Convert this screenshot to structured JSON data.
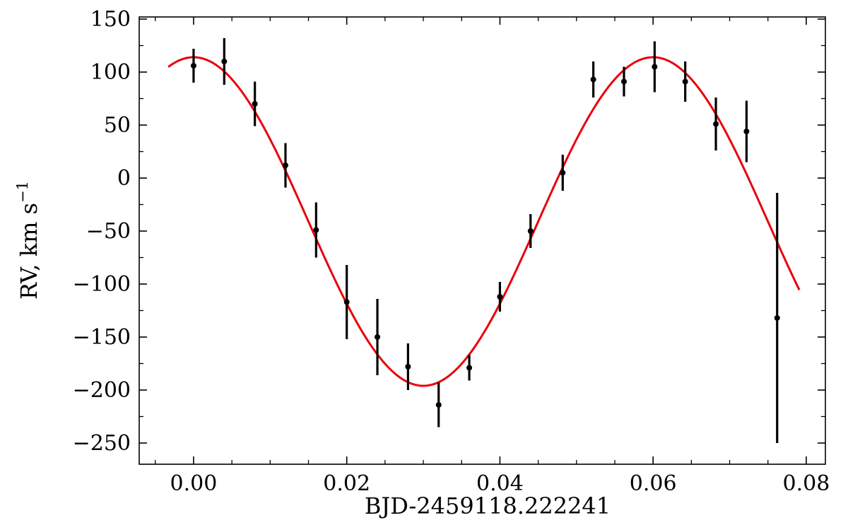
{
  "chart_data": {
    "type": "scatter",
    "xlabel": "BJD-2459118.222241",
    "ylabel_main": "RV, km s",
    "ylabel_sup": "−1",
    "xlim": [
      -0.0071,
      0.0825
    ],
    "ylim": [
      -270,
      152
    ],
    "xticks": [
      0.0,
      0.02,
      0.04,
      0.06,
      0.08
    ],
    "xtick_labels": [
      "0.00",
      "0.02",
      "0.04",
      "0.06",
      "0.08"
    ],
    "yticks": [
      150,
      100,
      50,
      0,
      -50,
      -100,
      -150,
      -200,
      -250
    ],
    "ytick_labels": [
      "150",
      "100",
      "50",
      "0",
      "−50",
      "−100",
      "−150",
      "−200",
      "−250"
    ],
    "grid": false,
    "series": [
      {
        "kind": "errorbar",
        "color": "#000000",
        "x": [
          0.0,
          0.004,
          0.008,
          0.012,
          0.016,
          0.02,
          0.024,
          0.028,
          0.032,
          0.036,
          0.04,
          0.044,
          0.0482,
          0.0522,
          0.0562,
          0.0602,
          0.0642,
          0.0682,
          0.0722,
          0.0762
        ],
        "y": [
          106,
          110,
          70,
          12,
          -49,
          -117,
          -150,
          -178,
          -214,
          -179,
          -112,
          -50,
          5,
          93,
          91,
          105,
          91,
          51,
          44,
          -132
        ],
        "yerr": [
          16,
          22,
          21,
          21,
          26,
          35,
          36,
          22,
          21,
          12,
          14,
          16,
          17,
          17,
          14,
          24,
          19,
          25,
          29,
          118
        ]
      },
      {
        "kind": "model",
        "color": "#e8000b",
        "function": "sine",
        "offset": -41,
        "amplitude": 155,
        "period": 0.06,
        "phase_peak_x": 0.0,
        "x_start": -0.0033,
        "x_end": 0.0791
      }
    ]
  }
}
